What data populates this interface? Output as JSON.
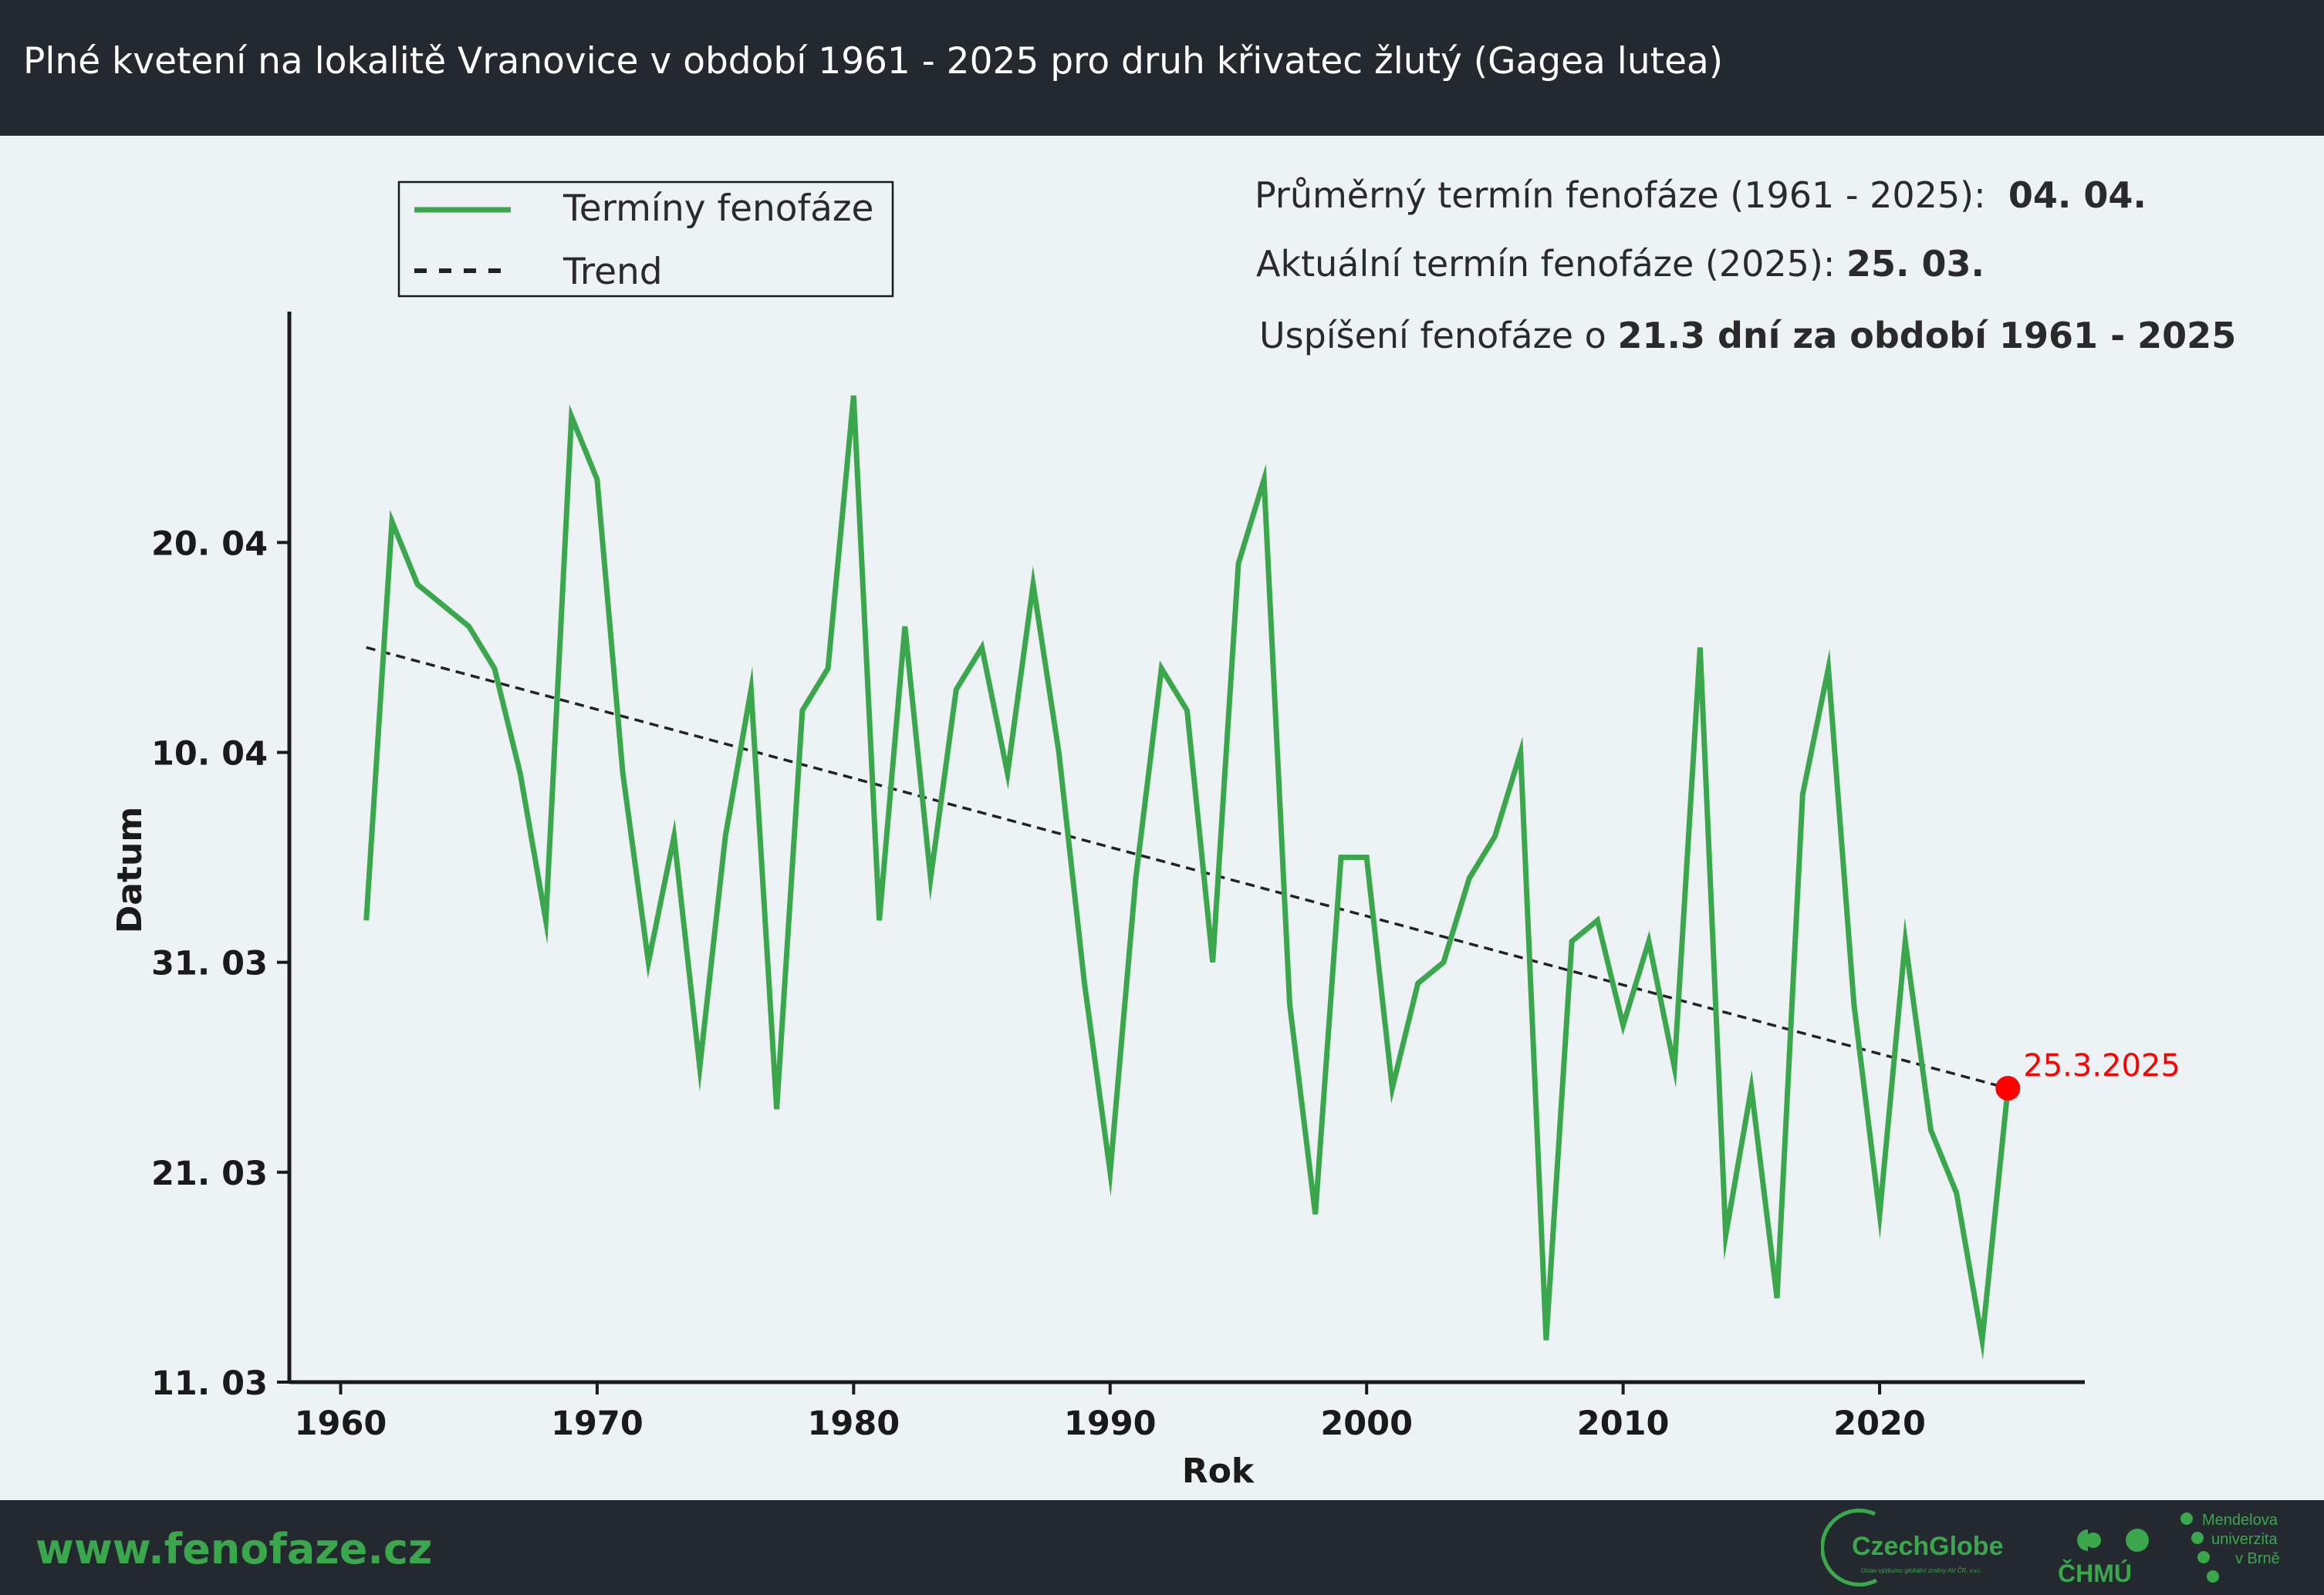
{
  "header": {
    "title": "Plné kvetení na lokalitě Vranovice v období 1961 - 2025 pro druh křivatec žlutý (Gagea lutea)"
  },
  "stats": {
    "mean_label": "Průměrný termín fenofáze (1961 - 2025):",
    "mean_value": "04. 04.",
    "current_label": "Aktuální termín fenofáze (2025):",
    "current_value": "25. 03.",
    "trend_label": "Uspíšení fenofáze o",
    "trend_value": "21.3 dní za období 1961 - 2025"
  },
  "footer": {
    "website": "www.fenofaze.cz",
    "logos": {
      "czechglobe": "CzechGlobe",
      "czechglobe_tagline": "Ústav výzkumu globální změny AV ČR, v.v.i.",
      "chmu": "ČHMÚ",
      "mendelu": [
        "Mendelova",
        "univerzita",
        "v Brně"
      ]
    }
  },
  "colors": {
    "series": "#3aa74c",
    "trend": "#222222",
    "highlight": "#ff0000",
    "header": "#23292f"
  },
  "chart_data": {
    "type": "line",
    "xlabel": "Rok",
    "ylabel": "Datum",
    "xlim": [
      1958,
      2028
    ],
    "ylim": [
      "2025-03-11",
      "2025-05-01"
    ],
    "x_ticks": [
      1960,
      1970,
      1980,
      1990,
      2000,
      2010,
      2020
    ],
    "y_ticks": [
      {
        "value": "2025-03-11",
        "label": "11. 03"
      },
      {
        "value": "2025-03-21",
        "label": "21. 03"
      },
      {
        "value": "2025-03-31",
        "label": "31. 03"
      },
      {
        "value": "2025-04-10",
        "label": "10. 04"
      },
      {
        "value": "2025-04-20",
        "label": "20. 04"
      }
    ],
    "legend": {
      "position": "top-left",
      "entries": [
        "Termíny fenofáze",
        "Trend"
      ]
    },
    "series": [
      {
        "name": "Termíny fenofáze",
        "x": [
          1961,
          1962,
          1963,
          1964,
          1965,
          1966,
          1967,
          1968,
          1969,
          1970,
          1971,
          1972,
          1973,
          1974,
          1975,
          1976,
          1977,
          1978,
          1979,
          1980,
          1981,
          1982,
          1983,
          1984,
          1985,
          1986,
          1987,
          1988,
          1989,
          1990,
          1991,
          1992,
          1993,
          1994,
          1995,
          1996,
          1997,
          1998,
          1999,
          2000,
          2001,
          2002,
          2003,
          2004,
          2005,
          2006,
          2007,
          2008,
          2009,
          2010,
          2011,
          2012,
          2013,
          2014,
          2015,
          2016,
          2017,
          2018,
          2019,
          2020,
          2021,
          2022,
          2023,
          2024,
          2025
        ],
        "y": [
          "2025-04-02",
          "2025-04-21",
          "2025-04-18",
          "2025-04-17",
          "2025-04-16",
          "2025-04-14",
          "2025-04-09",
          "2025-04-02",
          "2025-04-26",
          "2025-04-23",
          "2025-04-09",
          "2025-03-31",
          "2025-04-06",
          "2025-03-26",
          "2025-04-06",
          "2025-04-13",
          "2025-03-24",
          "2025-04-12",
          "2025-04-14",
          "2025-04-27",
          "2025-04-02",
          "2025-04-16",
          "2025-04-04",
          "2025-04-13",
          "2025-04-15",
          "2025-04-09",
          "2025-04-18",
          "2025-04-10",
          "2025-03-30",
          "2025-03-21",
          "2025-04-04",
          "2025-04-14",
          "2025-04-12",
          "2025-03-31",
          "2025-04-19",
          "2025-04-23",
          "2025-03-29",
          "2025-03-19",
          "2025-04-05",
          "2025-04-05",
          "2025-03-25",
          "2025-03-30",
          "2025-03-31",
          "2025-04-04",
          "2025-04-06",
          "2025-04-10",
          "2025-03-13",
          "2025-04-01",
          "2025-04-02",
          "2025-03-28",
          "2025-04-01",
          "2025-03-26",
          "2025-04-15",
          "2025-03-18",
          "2025-03-25",
          "2025-03-15",
          "2025-04-08",
          "2025-04-14",
          "2025-03-29",
          "2025-03-19",
          "2025-04-01",
          "2025-03-23",
          "2025-03-20",
          "2025-03-13",
          "2025-03-25"
        ]
      },
      {
        "name": "Trend",
        "x": [
          1961,
          2025
        ],
        "y": [
          "2025-04-15",
          "2025-03-25"
        ]
      }
    ],
    "annotation": {
      "x": 2025,
      "y": "2025-03-25",
      "text": "25.3.2025"
    }
  }
}
